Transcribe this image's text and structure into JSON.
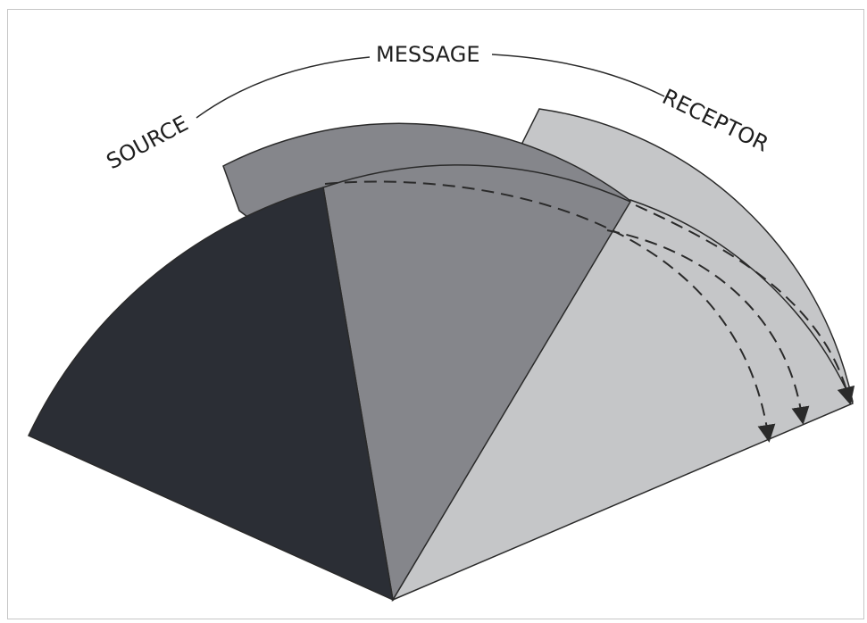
{
  "labels": {
    "source": "SOURCE",
    "message": "MESSAGE",
    "receptor": "RECEPTOR"
  },
  "colors": {
    "source": "#2b2e35",
    "message": "#85868b",
    "receptor": "#c5c6c8",
    "message_band": "#85868b",
    "receptor_band": "#c5c6c8",
    "outline": "#2a2a2a",
    "dashes": "#2a2a2a"
  }
}
